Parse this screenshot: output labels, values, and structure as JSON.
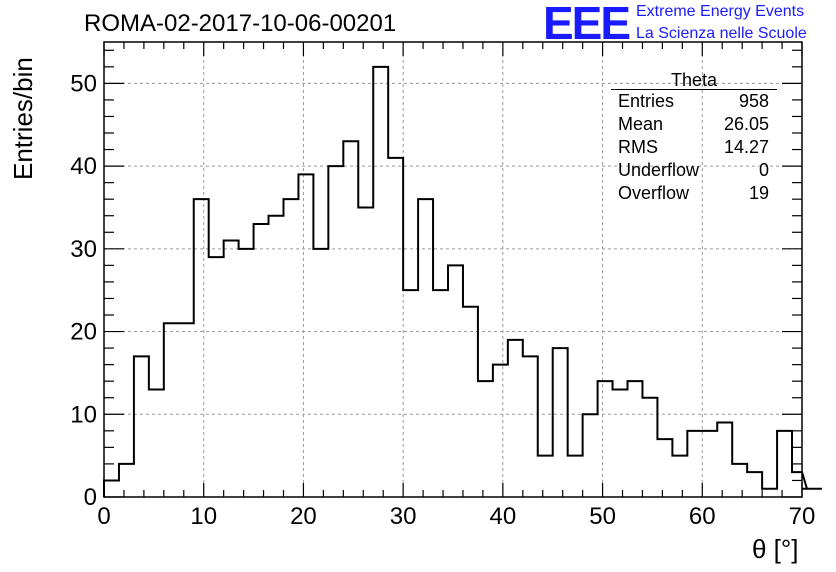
{
  "header": {
    "run_title": "ROMA-02-2017-10-06-00201",
    "logo_text": "EEE",
    "logo_line1": "Extreme Energy Events",
    "logo_line2": "La Scienza nelle Scuole"
  },
  "stats_box": {
    "title": "Theta",
    "rows": [
      {
        "label": "Entries",
        "value": "958"
      },
      {
        "label": "Mean",
        "value": "26.05"
      },
      {
        "label": "RMS",
        "value": "14.27"
      },
      {
        "label": "Underflow",
        "value": "0"
      },
      {
        "label": "Overflow",
        "value": "19"
      }
    ]
  },
  "chart_data": {
    "type": "bar",
    "style": "step-histogram",
    "xlabel": "θ [°]",
    "ylabel": "Entries/bin",
    "xlim": [
      0,
      70
    ],
    "ylim": [
      0,
      55
    ],
    "grid": true,
    "x_ticks": [
      0,
      10,
      20,
      30,
      40,
      50,
      60,
      70
    ],
    "y_ticks": [
      0,
      10,
      20,
      30,
      40,
      50
    ],
    "bin_width": 1.5,
    "bin_edges_start": 0,
    "values": [
      2,
      4,
      17,
      13,
      21,
      21,
      36,
      29,
      31,
      30,
      33,
      34,
      36,
      39,
      30,
      40,
      43,
      35,
      52,
      41,
      25,
      36,
      25,
      28,
      23,
      14,
      16,
      19,
      17,
      5,
      18,
      5,
      10,
      14,
      13,
      14,
      12,
      7,
      5,
      8,
      8,
      9,
      4,
      3,
      1,
      8,
      3,
      1,
      1
    ],
    "line_color": "#000000"
  }
}
